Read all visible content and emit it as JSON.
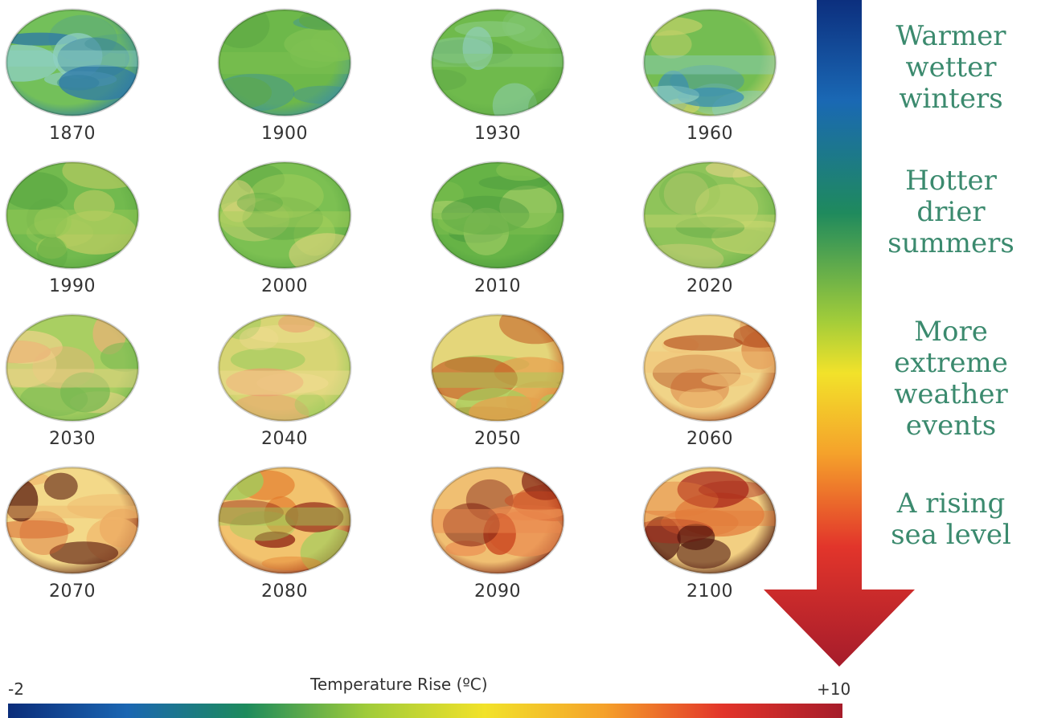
{
  "globes": [
    {
      "year": "1870",
      "palette": [
        "#73c05a",
        "#8fd0c4",
        "#4f9f8c",
        "#2d78a8"
      ]
    },
    {
      "year": "1900",
      "palette": [
        "#6db84a",
        "#7fc152",
        "#5ea944",
        "#3c8fa0"
      ]
    },
    {
      "year": "1930",
      "palette": [
        "#6fba4c",
        "#86c97a",
        "#92d0be",
        "#5da845"
      ]
    },
    {
      "year": "1960",
      "palette": [
        "#74bd52",
        "#8fcfc0",
        "#3d8fb0",
        "#c9d36a"
      ]
    },
    {
      "year": "1990",
      "palette": [
        "#72ba4e",
        "#9ac957",
        "#d8d46a",
        "#5ea944"
      ]
    },
    {
      "year": "2000",
      "palette": [
        "#7cc052",
        "#a6cf5c",
        "#e5d580",
        "#5ea944"
      ]
    },
    {
      "year": "2010",
      "palette": [
        "#66b346",
        "#7fbf4f",
        "#a9d06a",
        "#4d9c3f"
      ]
    },
    {
      "year": "2020",
      "palette": [
        "#8fc45a",
        "#c7d66e",
        "#e8d587",
        "#6eb24c"
      ]
    },
    {
      "year": "2030",
      "palette": [
        "#a9cf62",
        "#efd38a",
        "#eab277",
        "#78b851"
      ]
    },
    {
      "year": "2040",
      "palette": [
        "#d7d574",
        "#f2dc92",
        "#eba06e",
        "#9fcb5e"
      ]
    },
    {
      "year": "2050",
      "palette": [
        "#e4d67a",
        "#a4cd5c",
        "#e6a04d",
        "#c0521c"
      ]
    },
    {
      "year": "2060",
      "palette": [
        "#f0d488",
        "#f2c478",
        "#dd8a4a",
        "#b24a1c"
      ]
    },
    {
      "year": "2070",
      "palette": [
        "#f3d989",
        "#f0b56a",
        "#d7622c",
        "#5a1a0e"
      ]
    },
    {
      "year": "2080",
      "palette": [
        "#f2c36e",
        "#9fce5c",
        "#e37a2c",
        "#8a1c10"
      ]
    },
    {
      "year": "2090",
      "palette": [
        "#f0bf72",
        "#ea8a4e",
        "#c9441e",
        "#7a1a10"
      ]
    },
    {
      "year": "2100",
      "palette": [
        "#f2cf82",
        "#e27a3a",
        "#a8261a",
        "#4a100a"
      ]
    }
  ],
  "side_labels": [
    "Warmer wetter winters",
    "Hotter drier summers",
    "More extreme weather events",
    "A rising sea level"
  ],
  "side_labels_lines": [
    [
      "Warmer",
      "wetter",
      "winters"
    ],
    [
      "Hotter",
      "drier",
      "summers"
    ],
    [
      "More",
      "extreme",
      "weather",
      "events"
    ],
    [
      "A rising",
      "sea level"
    ]
  ],
  "scale": {
    "title": "Temperature Rise (ºC)",
    "min": "-2",
    "max": "+10",
    "gradient": [
      "#0b2d7a",
      "#1b66b2",
      "#1d8b5c",
      "#9fcb3a",
      "#f2e22a",
      "#f5a12a",
      "#e2342a",
      "#a61c2a"
    ]
  },
  "colors": {
    "label_green": "#3b8a6e",
    "arrow_head": "#a8202e"
  }
}
